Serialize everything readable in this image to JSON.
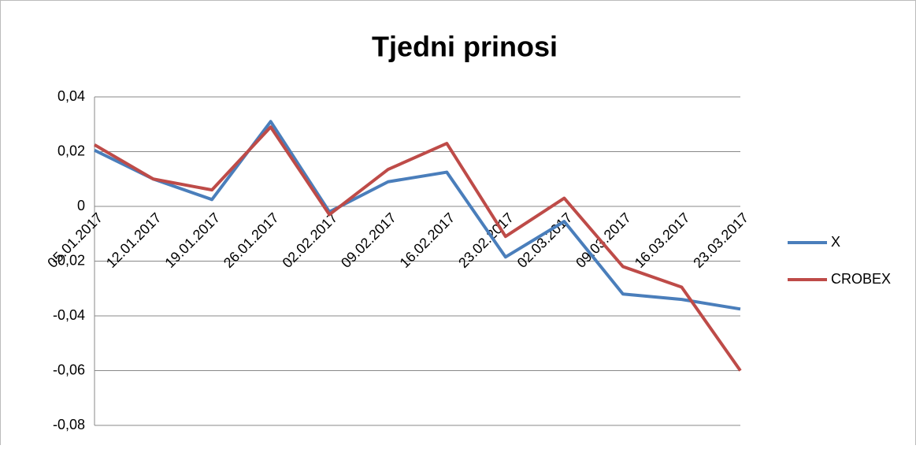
{
  "chart_data": {
    "type": "line",
    "title": "Tjedni prinosi",
    "categories": [
      "05.01.2017",
      "12.01.2017",
      "19.01.2017",
      "26.01.2017",
      "02.02.2017",
      "09.02.2017",
      "16.02.2017",
      "23.02.2017",
      "02.03.2017",
      "09.03.2017",
      "16.03.2017",
      "23.03.2017"
    ],
    "series": [
      {
        "name": "X",
        "color": "#4a7ebb",
        "values": [
          0.0205,
          0.01,
          0.0025,
          0.031,
          -0.002,
          0.009,
          0.0125,
          -0.0185,
          -0.0055,
          -0.032,
          -0.034,
          -0.0375
        ]
      },
      {
        "name": "CROBEX",
        "color": "#be4b48",
        "values": [
          0.0225,
          0.01,
          0.006,
          0.029,
          -0.003,
          0.0135,
          0.023,
          -0.011,
          0.003,
          -0.022,
          -0.0295,
          -0.06
        ]
      }
    ],
    "ylim": [
      -0.08,
      0.04
    ],
    "yticks": [
      {
        "value": -0.08,
        "label": "-0,08"
      },
      {
        "value": -0.06,
        "label": "-0,06"
      },
      {
        "value": -0.04,
        "label": "-0,04"
      },
      {
        "value": -0.02,
        "label": "-0,02"
      },
      0,
      {
        "value": 0.02,
        "label": "0,02"
      },
      {
        "value": 0.04,
        "label": "0,04"
      }
    ],
    "grid": true,
    "legend": "right"
  }
}
